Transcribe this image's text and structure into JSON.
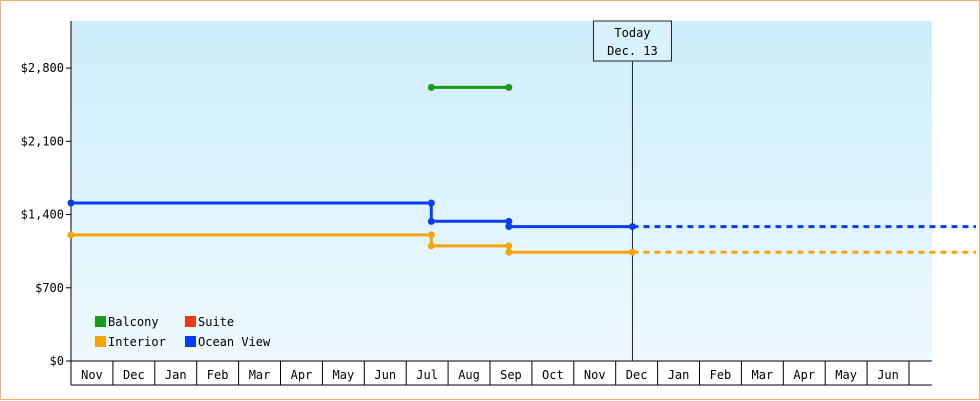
{
  "chart_data": {
    "type": "line",
    "step": true,
    "y_ticks": [
      "$0",
      "$700",
      "$1,400",
      "$2,100",
      "$2,800"
    ],
    "y_tick_values": [
      0,
      700,
      1400,
      2100,
      2800
    ],
    "ylim": [
      0,
      3250
    ],
    "x_months": [
      "Nov",
      "Dec",
      "Jan",
      "Feb",
      "Mar",
      "Apr",
      "May",
      "Jun",
      "Jul",
      "Aug",
      "Sep",
      "Oct",
      "Nov",
      "Dec",
      "Jan",
      "Feb",
      "Mar",
      "Apr",
      "May",
      "Jun"
    ],
    "grid": false,
    "legend_position": "bottom-left",
    "today": {
      "label": "Today",
      "date": "Dec. 13",
      "month_index": 13.4
    },
    "colors": {
      "Balcony": "#1a9a1a",
      "Suite": "#ee3b14",
      "Interior": "#f5a30e",
      "Ocean View": "#0a3cf0",
      "plot_bg_top": "#cdeefb",
      "plot_bg_bottom": "#eef9fe",
      "axis": "#000000"
    },
    "series": [
      {
        "name": "Balcony",
        "points": [
          [
            8.6,
            2615
          ],
          [
            10.45,
            2615
          ]
        ],
        "projection": false
      },
      {
        "name": "Suite",
        "points": [],
        "projection": false
      },
      {
        "name": "Interior",
        "points": [
          [
            0,
            1205
          ],
          [
            8.6,
            1205
          ],
          [
            8.6,
            1100
          ],
          [
            10.45,
            1100
          ],
          [
            10.45,
            1040
          ],
          [
            13.4,
            1040
          ]
        ],
        "projection": true
      },
      {
        "name": "Ocean View",
        "points": [
          [
            0,
            1510
          ],
          [
            8.6,
            1510
          ],
          [
            8.6,
            1335
          ],
          [
            10.45,
            1335
          ],
          [
            10.45,
            1285
          ],
          [
            13.4,
            1285
          ]
        ],
        "projection": true
      }
    ]
  }
}
